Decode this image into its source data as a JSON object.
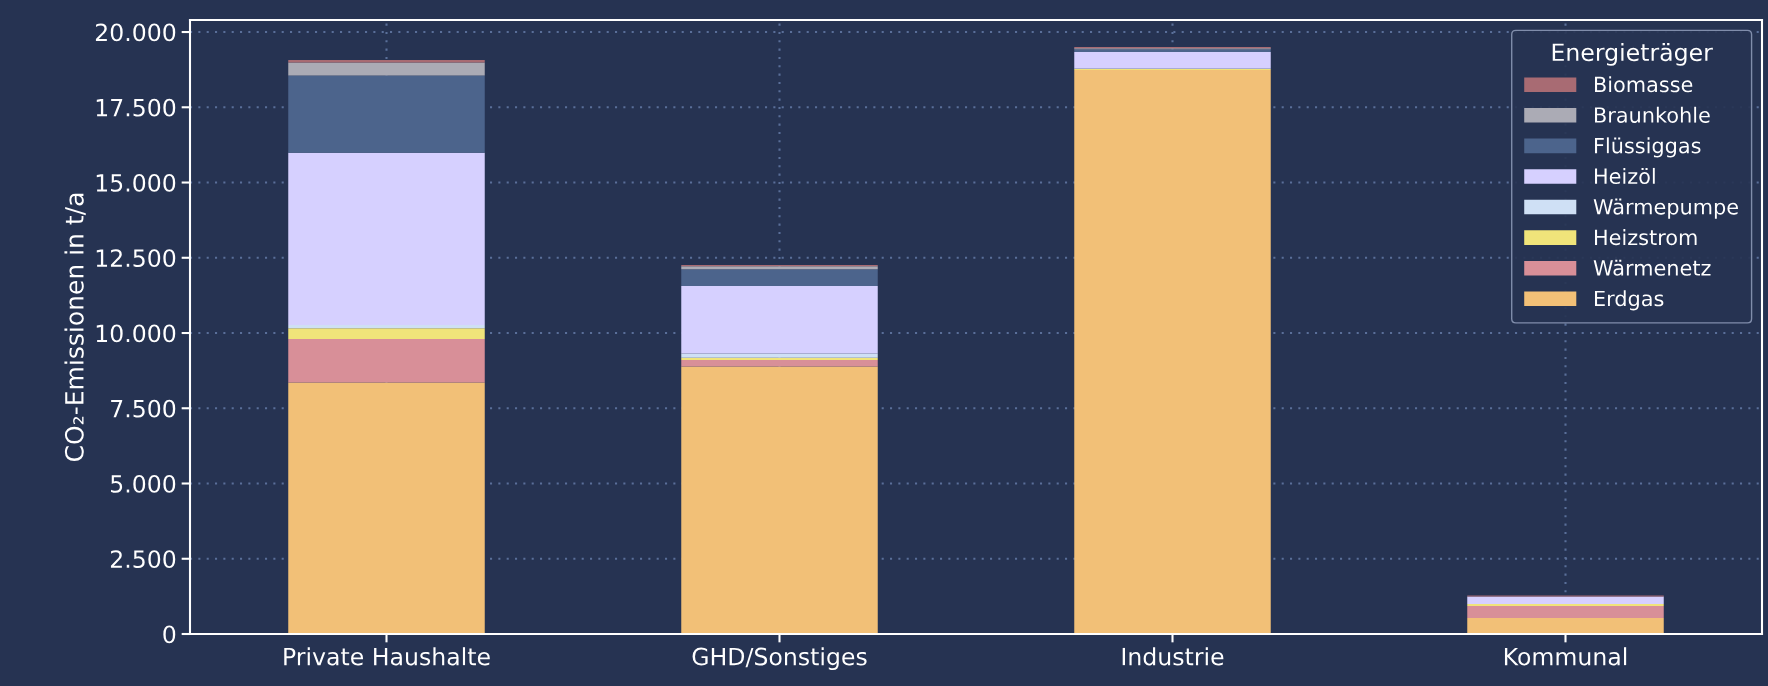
{
  "chart_data": {
    "type": "bar",
    "stacked": true,
    "ylabel": "CO₂-Emissionen in t/a",
    "legend_title": "Energieträger",
    "legend": "top right",
    "grid": true,
    "categories": [
      "Private Haushalte",
      "GHD/Sonstiges",
      "Industrie",
      "Kommunal"
    ],
    "series": [
      {
        "name": "Erdgas",
        "color": "#f2c077",
        "values": [
          8360,
          8890,
          18740,
          530
        ]
      },
      {
        "name": "Wärmenetz",
        "color": "#d88f98",
        "values": [
          1440,
          210,
          0,
          400
        ]
      },
      {
        "name": "Heizstrom",
        "color": "#f0e47a",
        "values": [
          360,
          80,
          30,
          70
        ]
      },
      {
        "name": "Wärmepumpe",
        "color": "#cfe0f5",
        "values": [
          110,
          140,
          20,
          0
        ]
      },
      {
        "name": "Heizöl",
        "color": "#d6d0ff",
        "values": [
          5720,
          2240,
          550,
          250
        ]
      },
      {
        "name": "Flüssiggas",
        "color": "#4c648c",
        "values": [
          2570,
          560,
          90,
          0
        ]
      },
      {
        "name": "Braunkohle",
        "color": "#ababb5",
        "values": [
          430,
          100,
          30,
          0
        ]
      },
      {
        "name": "Biomasse",
        "color": "#a86b73",
        "values": [
          80,
          40,
          40,
          30
        ]
      }
    ],
    "ylim": [
      0,
      20400
    ],
    "yticks": [
      {
        "value": 0,
        "label": "0"
      },
      {
        "value": 2500,
        "label": "2.500"
      },
      {
        "value": 5000,
        "label": "5.000"
      },
      {
        "value": 7500,
        "label": "7.500"
      },
      {
        "value": 10000,
        "label": "10.000"
      },
      {
        "value": 12500,
        "label": "12.500"
      },
      {
        "value": 15000,
        "label": "15.000"
      },
      {
        "value": 17500,
        "label": "17.500"
      },
      {
        "value": 20000,
        "label": "20.000"
      }
    ]
  }
}
